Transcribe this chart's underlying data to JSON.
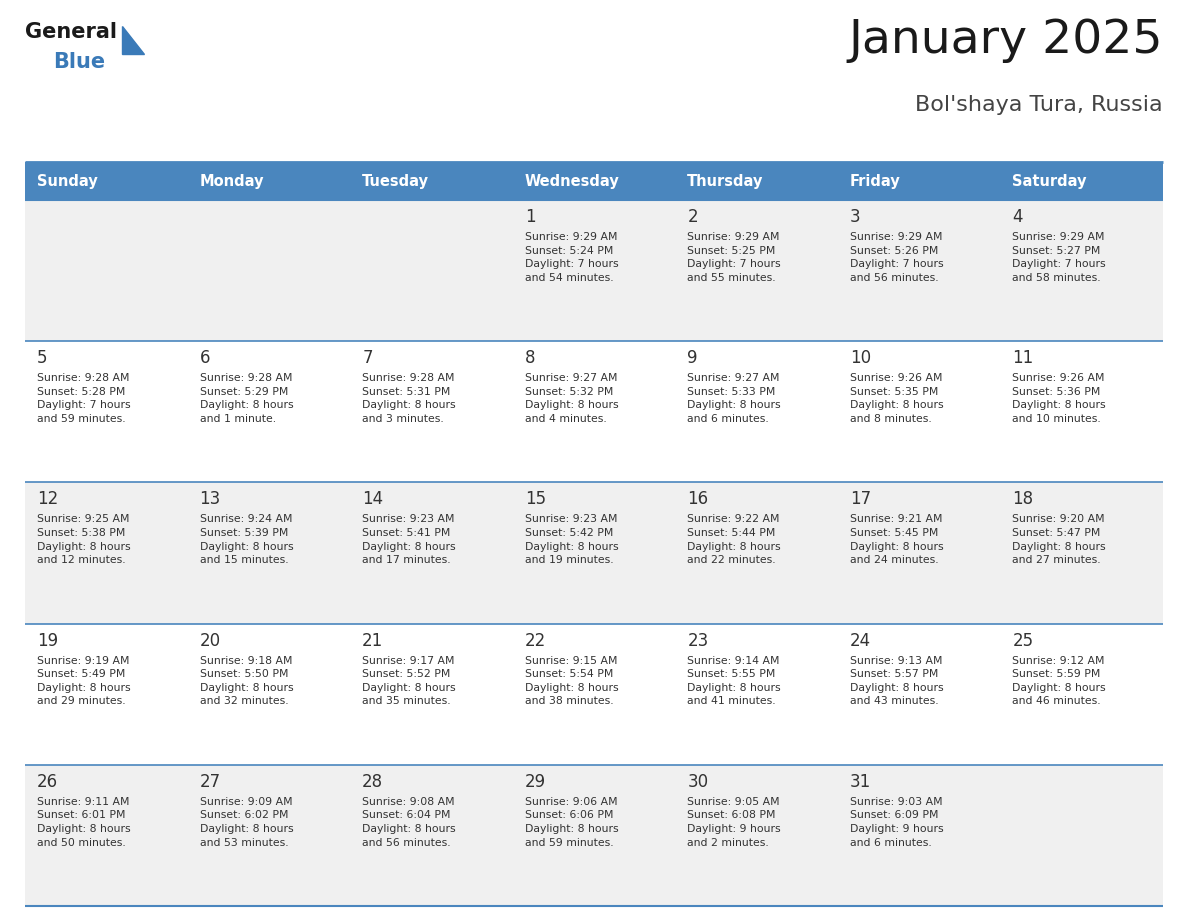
{
  "title": "January 2025",
  "subtitle": "Bol'shaya Tura, Russia",
  "days_of_week": [
    "Sunday",
    "Monday",
    "Tuesday",
    "Wednesday",
    "Thursday",
    "Friday",
    "Saturday"
  ],
  "header_bg": "#4a86be",
  "header_text": "#ffffff",
  "row_bg_odd": "#f0f0f0",
  "row_bg_even": "#ffffff",
  "cell_text_color": "#333333",
  "grid_line_color": "#4a86be",
  "title_color": "#1a1a1a",
  "subtitle_color": "#444444",
  "logo_general_color": "#1a1a1a",
  "logo_blue_color": "#3a7ab8",
  "logo_triangle_color": "#3a7ab8",
  "calendar_data": [
    [
      {
        "day": "",
        "info": ""
      },
      {
        "day": "",
        "info": ""
      },
      {
        "day": "",
        "info": ""
      },
      {
        "day": "1",
        "info": "Sunrise: 9:29 AM\nSunset: 5:24 PM\nDaylight: 7 hours\nand 54 minutes."
      },
      {
        "day": "2",
        "info": "Sunrise: 9:29 AM\nSunset: 5:25 PM\nDaylight: 7 hours\nand 55 minutes."
      },
      {
        "day": "3",
        "info": "Sunrise: 9:29 AM\nSunset: 5:26 PM\nDaylight: 7 hours\nand 56 minutes."
      },
      {
        "day": "4",
        "info": "Sunrise: 9:29 AM\nSunset: 5:27 PM\nDaylight: 7 hours\nand 58 minutes."
      }
    ],
    [
      {
        "day": "5",
        "info": "Sunrise: 9:28 AM\nSunset: 5:28 PM\nDaylight: 7 hours\nand 59 minutes."
      },
      {
        "day": "6",
        "info": "Sunrise: 9:28 AM\nSunset: 5:29 PM\nDaylight: 8 hours\nand 1 minute."
      },
      {
        "day": "7",
        "info": "Sunrise: 9:28 AM\nSunset: 5:31 PM\nDaylight: 8 hours\nand 3 minutes."
      },
      {
        "day": "8",
        "info": "Sunrise: 9:27 AM\nSunset: 5:32 PM\nDaylight: 8 hours\nand 4 minutes."
      },
      {
        "day": "9",
        "info": "Sunrise: 9:27 AM\nSunset: 5:33 PM\nDaylight: 8 hours\nand 6 minutes."
      },
      {
        "day": "10",
        "info": "Sunrise: 9:26 AM\nSunset: 5:35 PM\nDaylight: 8 hours\nand 8 minutes."
      },
      {
        "day": "11",
        "info": "Sunrise: 9:26 AM\nSunset: 5:36 PM\nDaylight: 8 hours\nand 10 minutes."
      }
    ],
    [
      {
        "day": "12",
        "info": "Sunrise: 9:25 AM\nSunset: 5:38 PM\nDaylight: 8 hours\nand 12 minutes."
      },
      {
        "day": "13",
        "info": "Sunrise: 9:24 AM\nSunset: 5:39 PM\nDaylight: 8 hours\nand 15 minutes."
      },
      {
        "day": "14",
        "info": "Sunrise: 9:23 AM\nSunset: 5:41 PM\nDaylight: 8 hours\nand 17 minutes."
      },
      {
        "day": "15",
        "info": "Sunrise: 9:23 AM\nSunset: 5:42 PM\nDaylight: 8 hours\nand 19 minutes."
      },
      {
        "day": "16",
        "info": "Sunrise: 9:22 AM\nSunset: 5:44 PM\nDaylight: 8 hours\nand 22 minutes."
      },
      {
        "day": "17",
        "info": "Sunrise: 9:21 AM\nSunset: 5:45 PM\nDaylight: 8 hours\nand 24 minutes."
      },
      {
        "day": "18",
        "info": "Sunrise: 9:20 AM\nSunset: 5:47 PM\nDaylight: 8 hours\nand 27 minutes."
      }
    ],
    [
      {
        "day": "19",
        "info": "Sunrise: 9:19 AM\nSunset: 5:49 PM\nDaylight: 8 hours\nand 29 minutes."
      },
      {
        "day": "20",
        "info": "Sunrise: 9:18 AM\nSunset: 5:50 PM\nDaylight: 8 hours\nand 32 minutes."
      },
      {
        "day": "21",
        "info": "Sunrise: 9:17 AM\nSunset: 5:52 PM\nDaylight: 8 hours\nand 35 minutes."
      },
      {
        "day": "22",
        "info": "Sunrise: 9:15 AM\nSunset: 5:54 PM\nDaylight: 8 hours\nand 38 minutes."
      },
      {
        "day": "23",
        "info": "Sunrise: 9:14 AM\nSunset: 5:55 PM\nDaylight: 8 hours\nand 41 minutes."
      },
      {
        "day": "24",
        "info": "Sunrise: 9:13 AM\nSunset: 5:57 PM\nDaylight: 8 hours\nand 43 minutes."
      },
      {
        "day": "25",
        "info": "Sunrise: 9:12 AM\nSunset: 5:59 PM\nDaylight: 8 hours\nand 46 minutes."
      }
    ],
    [
      {
        "day": "26",
        "info": "Sunrise: 9:11 AM\nSunset: 6:01 PM\nDaylight: 8 hours\nand 50 minutes."
      },
      {
        "day": "27",
        "info": "Sunrise: 9:09 AM\nSunset: 6:02 PM\nDaylight: 8 hours\nand 53 minutes."
      },
      {
        "day": "28",
        "info": "Sunrise: 9:08 AM\nSunset: 6:04 PM\nDaylight: 8 hours\nand 56 minutes."
      },
      {
        "day": "29",
        "info": "Sunrise: 9:06 AM\nSunset: 6:06 PM\nDaylight: 8 hours\nand 59 minutes."
      },
      {
        "day": "30",
        "info": "Sunrise: 9:05 AM\nSunset: 6:08 PM\nDaylight: 9 hours\nand 2 minutes."
      },
      {
        "day": "31",
        "info": "Sunrise: 9:03 AM\nSunset: 6:09 PM\nDaylight: 9 hours\nand 6 minutes."
      },
      {
        "day": "",
        "info": ""
      }
    ]
  ]
}
